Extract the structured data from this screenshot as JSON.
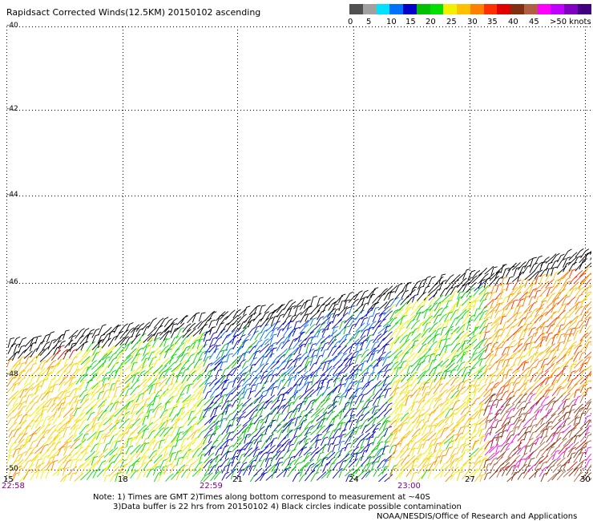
{
  "title": "Rapidsact Corrected Winds(12.5KM) 20150102 ascending",
  "legend": {
    "colors": [
      "#505050",
      "#a0a0a0",
      "#00e0ff",
      "#0070ff",
      "#0000c8",
      "#00c000",
      "#00e000",
      "#f0f000",
      "#ffc000",
      "#ff8000",
      "#ff3000",
      "#e00000",
      "#803010",
      "#b06040",
      "#ff00ff",
      "#c000ff",
      "#8000c0",
      "#400080"
    ],
    "ticks": [
      "0",
      "5",
      "10",
      "15",
      "20",
      "25",
      "30",
      "35",
      "40",
      "45",
      ">50 knots"
    ]
  },
  "map": {
    "lat_labels": [
      "-40",
      "-42",
      "-44",
      "-46",
      "-48",
      "-50"
    ],
    "lon_labels": [
      "15",
      "18",
      "21",
      "24",
      "27",
      "30"
    ],
    "time_labels": [
      "22:58",
      "22:59",
      "23:00"
    ]
  },
  "notes": {
    "line1": "Note: 1) Times are GMT 2)Times along bottom correspond to measurement at ~40S",
    "line2": "3)Data buffer is 22 hrs from 20150102 4) Black circles indicate possible contamination",
    "credit": "NOAA/NESDIS/Office of Research and Applications"
  }
}
